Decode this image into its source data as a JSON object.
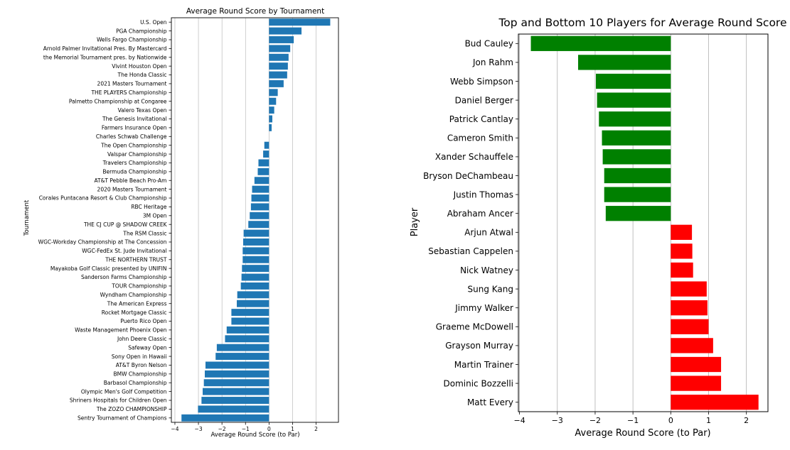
{
  "chart_data": [
    {
      "type": "bar",
      "orientation": "horizontal",
      "title": "Average Round Score by Tournament",
      "xlabel": "Average Round Score (to Par)",
      "ylabel": "Tournament",
      "xlim": [
        -4.15,
        2.95
      ],
      "xticks": [
        -4,
        -3,
        -2,
        -1,
        0,
        1,
        2
      ],
      "xtick_labels": [
        "−4",
        "−3",
        "−2",
        "−1",
        "0",
        "1",
        "2"
      ],
      "grid": true,
      "color": "#1f77b4",
      "categories": [
        "U.S. Open",
        "PGA Championship",
        "Wells Fargo Championship",
        "Arnold Palmer Invitational Pres. By Mastercard",
        "the Memorial Tournament pres. by Nationwide",
        "Vivint Houston Open",
        "The Honda Classic",
        "2021 Masters Tournament",
        "THE PLAYERS Championship",
        "Palmetto Championship at Congaree",
        "Valero Texas Open",
        "The Genesis Invitational",
        "Farmers Insurance Open",
        "Charles Schwab Challenge",
        "The Open Championship",
        "Valspar Championship",
        "Travelers Championship",
        "Bermuda Championship",
        "AT&T Pebble Beach Pro-Am",
        "2020 Masters Tournament",
        "Corales Puntacana Resort & Club Championship",
        "RBC Heritage",
        "3M Open",
        "THE CJ CUP @ SHADOW CREEK",
        "The RSM Classic",
        "WGC-Workday Championship at The Concession",
        "WGC-FedEx St. Jude Invitational",
        "THE NORTHERN TRUST",
        "Mayakoba Golf Classic presented by UNIFIN",
        "Sanderson Farms Championship",
        "TOUR Championship",
        "Wyndham Championship",
        "The American Express",
        "Rocket Mortgage Classic",
        "Puerto Rico Open",
        "Waste Management Phoenix Open",
        "John Deere Classic",
        "Safeway Open",
        "Sony Open in Hawaii",
        "AT&T Byron Nelson",
        "BMW Championship",
        "Barbasol Championship",
        "Olympic Men's Golf Competition",
        "Shriners Hospitals for Children Open",
        "The ZOZO CHAMPIONSHIP",
        "Sentry Tournament of Champions"
      ],
      "values": [
        2.6,
        1.38,
        1.05,
        0.9,
        0.83,
        0.8,
        0.77,
        0.62,
        0.37,
        0.3,
        0.22,
        0.14,
        0.11,
        0.0,
        -0.2,
        -0.25,
        -0.45,
        -0.48,
        -0.62,
        -0.72,
        -0.75,
        -0.77,
        -0.82,
        -0.88,
        -1.08,
        -1.1,
        -1.12,
        -1.12,
        -1.15,
        -1.17,
        -1.2,
        -1.35,
        -1.37,
        -1.6,
        -1.6,
        -1.8,
        -1.87,
        -2.22,
        -2.27,
        -2.7,
        -2.73,
        -2.77,
        -2.82,
        -2.87,
        -3.02,
        -3.72
      ]
    },
    {
      "type": "bar",
      "orientation": "horizontal",
      "title": "Top and Bottom 10 Players for Average Round Score",
      "xlabel": "Average Round Score (to Par)",
      "ylabel": "Player",
      "xlim": [
        -4.03,
        2.57
      ],
      "xticks": [
        -4,
        -3,
        -2,
        -1,
        0,
        1,
        2
      ],
      "xtick_labels": [
        "−4",
        "−3",
        "−2",
        "−1",
        "0",
        "1",
        "2"
      ],
      "grid": true,
      "categories": [
        "Bud Cauley",
        "Jon Rahm",
        "Webb Simpson",
        "Daniel Berger",
        "Patrick Cantlay",
        "Cameron Smith",
        "Xander Schauffele",
        "Bryson DeChambeau",
        "Justin Thomas",
        "Abraham Ancer",
        "Arjun Atwal",
        "Sebastian Cappelen",
        "Nick Watney",
        "Sung Kang",
        "Jimmy Walker",
        "Graeme McDowell",
        "Grayson Murray",
        "Martin Trainer",
        "Dominic Bozzelli",
        "Matt Every"
      ],
      "values": [
        -3.7,
        -2.45,
        -1.98,
        -1.95,
        -1.9,
        -1.82,
        -1.8,
        -1.76,
        -1.76,
        -1.72,
        0.56,
        0.57,
        0.59,
        0.95,
        0.97,
        1.0,
        1.12,
        1.33,
        1.33,
        2.32
      ],
      "bar_colors": [
        "#008000",
        "#ff0000"
      ]
    }
  ]
}
